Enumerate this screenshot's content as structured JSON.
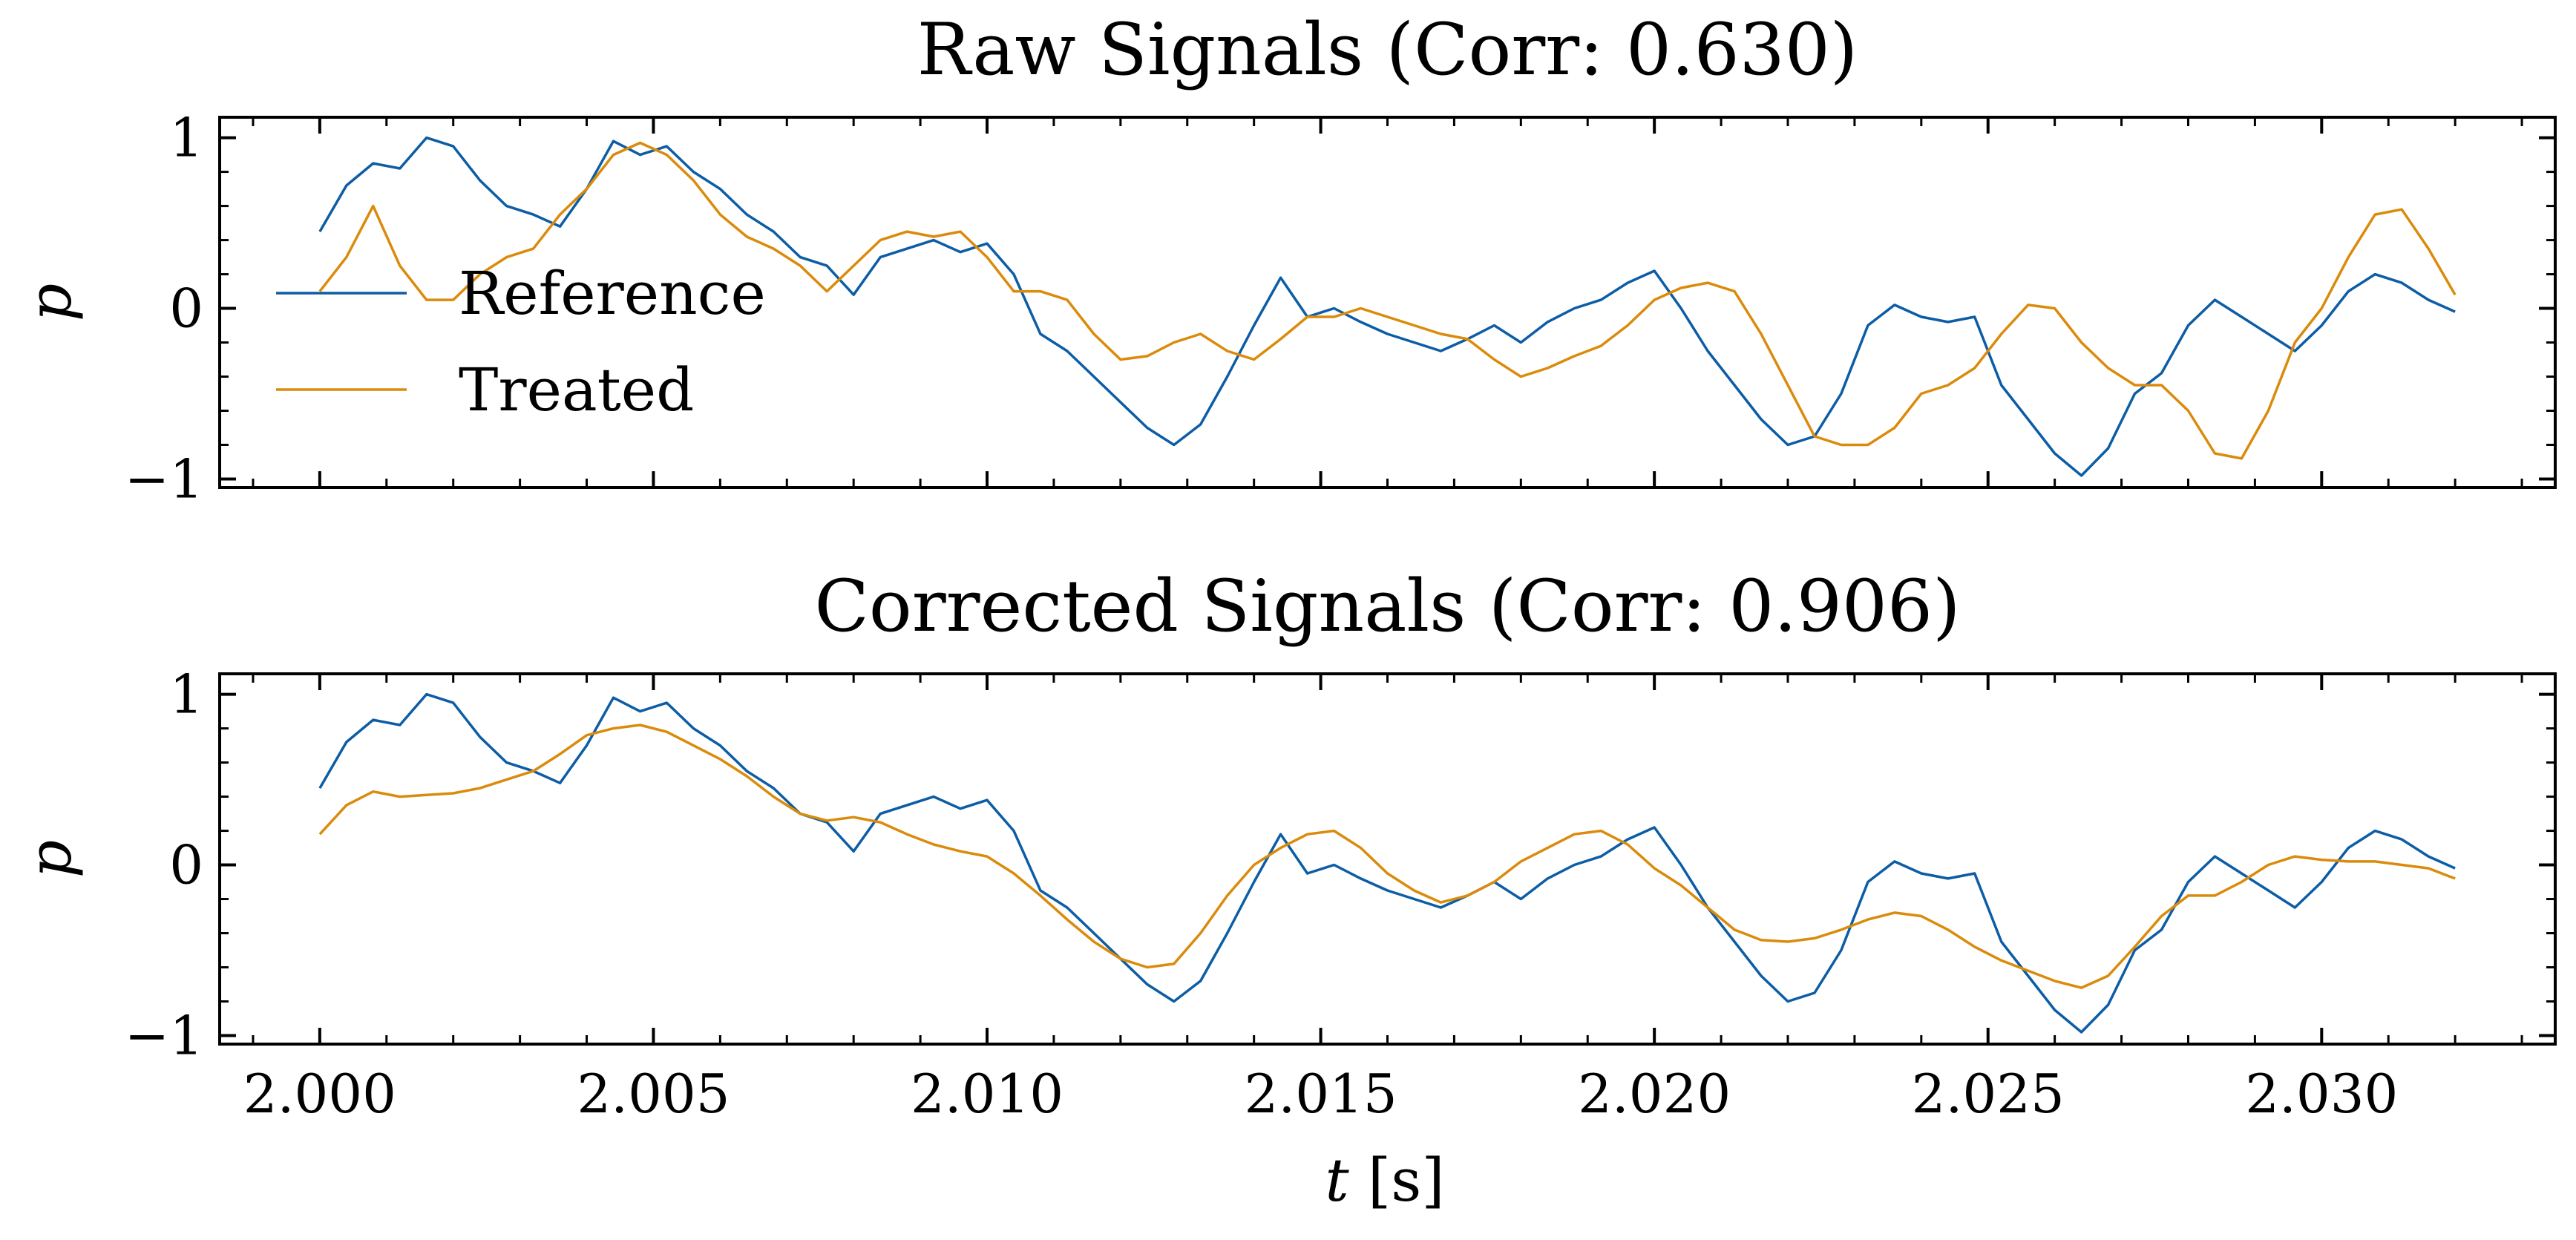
{
  "figure": {
    "xlabel_var": "t",
    "xlabel_unit": " [s]"
  },
  "colors": {
    "reference": "#0C5DA5",
    "treated": "#DB8B0B"
  },
  "chart_data": [
    {
      "type": "line",
      "title": "Raw Signals (Corr: 0.630)",
      "ylabel": "p",
      "xlim": [
        1.9985,
        2.0335
      ],
      "ylim": [
        -1.05,
        1.12
      ],
      "xticks": [
        2.0,
        2.005,
        2.01,
        2.015,
        2.02,
        2.025,
        2.03
      ],
      "yticks": [
        -1,
        0,
        1
      ],
      "legend": "center-left",
      "series": [
        {
          "name": "Reference",
          "color": "#0C5DA5",
          "x": [
            2.0,
            2.0004,
            2.0008,
            2.0012,
            2.0016,
            2.002,
            2.0024,
            2.0028,
            2.0032,
            2.0036,
            2.004,
            2.0044,
            2.0048,
            2.0052,
            2.0056,
            2.006,
            2.0064,
            2.0068,
            2.0072,
            2.0076,
            2.008,
            2.0084,
            2.0088,
            2.0092,
            2.0096,
            2.01,
            2.0104,
            2.0108,
            2.0112,
            2.0116,
            2.012,
            2.0124,
            2.0128,
            2.0132,
            2.0136,
            2.014,
            2.0144,
            2.0148,
            2.0152,
            2.0156,
            2.016,
            2.0164,
            2.0168,
            2.0172,
            2.0176,
            2.018,
            2.0184,
            2.0188,
            2.0192,
            2.0196,
            2.02,
            2.0204,
            2.0208,
            2.0212,
            2.0216,
            2.022,
            2.0224,
            2.0228,
            2.0232,
            2.0236,
            2.024,
            2.0244,
            2.0248,
            2.0252,
            2.0256,
            2.026,
            2.0264,
            2.0268,
            2.0272,
            2.0276,
            2.028,
            2.0284,
            2.0288,
            2.0292,
            2.0296,
            2.03,
            2.0304,
            2.0308,
            2.0312,
            2.0316,
            2.032
          ],
          "y": [
            0.45,
            0.72,
            0.85,
            0.82,
            1.0,
            0.95,
            0.75,
            0.6,
            0.55,
            0.48,
            0.7,
            0.98,
            0.9,
            0.95,
            0.8,
            0.7,
            0.55,
            0.45,
            0.3,
            0.25,
            0.08,
            0.3,
            0.35,
            0.4,
            0.33,
            0.38,
            0.2,
            -0.15,
            -0.25,
            -0.4,
            -0.55,
            -0.7,
            -0.8,
            -0.68,
            -0.4,
            -0.1,
            0.18,
            -0.05,
            0.0,
            -0.08,
            -0.15,
            -0.2,
            -0.25,
            -0.18,
            -0.1,
            -0.2,
            -0.08,
            0.0,
            0.05,
            0.15,
            0.22,
            0.0,
            -0.25,
            -0.45,
            -0.65,
            -0.8,
            -0.75,
            -0.5,
            -0.1,
            0.02,
            -0.05,
            -0.08,
            -0.05,
            -0.45,
            -0.65,
            -0.85,
            -0.98,
            -0.82,
            -0.5,
            -0.38,
            -0.1,
            0.05,
            -0.05,
            -0.15,
            -0.25,
            -0.1,
            0.1,
            0.2,
            0.15,
            0.05,
            -0.02
          ]
        },
        {
          "name": "Treated",
          "color": "#DB8B0B",
          "x": [
            2.0,
            2.0004,
            2.0008,
            2.0012,
            2.0016,
            2.002,
            2.0024,
            2.0028,
            2.0032,
            2.0036,
            2.004,
            2.0044,
            2.0048,
            2.0052,
            2.0056,
            2.006,
            2.0064,
            2.0068,
            2.0072,
            2.0076,
            2.008,
            2.0084,
            2.0088,
            2.0092,
            2.0096,
            2.01,
            2.0104,
            2.0108,
            2.0112,
            2.0116,
            2.012,
            2.0124,
            2.0128,
            2.0132,
            2.0136,
            2.014,
            2.0144,
            2.0148,
            2.0152,
            2.0156,
            2.016,
            2.0164,
            2.0168,
            2.0172,
            2.0176,
            2.018,
            2.0184,
            2.0188,
            2.0192,
            2.0196,
            2.02,
            2.0204,
            2.0208,
            2.0212,
            2.0216,
            2.022,
            2.0224,
            2.0228,
            2.0232,
            2.0236,
            2.024,
            2.0244,
            2.0248,
            2.0252,
            2.0256,
            2.026,
            2.0264,
            2.0268,
            2.0272,
            2.0276,
            2.028,
            2.0284,
            2.0288,
            2.0292,
            2.0296,
            2.03,
            2.0304,
            2.0308,
            2.0312,
            2.0316,
            2.032
          ],
          "y": [
            0.1,
            0.3,
            0.6,
            0.25,
            0.05,
            0.05,
            0.2,
            0.3,
            0.35,
            0.55,
            0.7,
            0.9,
            0.97,
            0.9,
            0.75,
            0.55,
            0.42,
            0.35,
            0.25,
            0.1,
            0.25,
            0.4,
            0.45,
            0.42,
            0.45,
            0.3,
            0.1,
            0.1,
            0.05,
            -0.15,
            -0.3,
            -0.28,
            -0.2,
            -0.15,
            -0.25,
            -0.3,
            -0.18,
            -0.05,
            -0.05,
            0.0,
            -0.05,
            -0.1,
            -0.15,
            -0.18,
            -0.3,
            -0.4,
            -0.35,
            -0.28,
            -0.22,
            -0.1,
            0.05,
            0.12,
            0.15,
            0.1,
            -0.15,
            -0.45,
            -0.75,
            -0.8,
            -0.8,
            -0.7,
            -0.5,
            -0.45,
            -0.35,
            -0.15,
            0.02,
            0.0,
            -0.2,
            -0.35,
            -0.45,
            -0.45,
            -0.6,
            -0.85,
            -0.88,
            -0.6,
            -0.2,
            0.0,
            0.3,
            0.55,
            0.58,
            0.35,
            0.08
          ]
        }
      ]
    },
    {
      "type": "line",
      "title": "Corrected Signals (Corr: 0.906)",
      "ylabel": "p",
      "xlim": [
        1.9985,
        2.0335
      ],
      "ylim": [
        -1.05,
        1.12
      ],
      "xticks": [
        2.0,
        2.005,
        2.01,
        2.015,
        2.02,
        2.025,
        2.03
      ],
      "xticklabels": [
        "2.000",
        "2.005",
        "2.010",
        "2.015",
        "2.020",
        "2.025",
        "2.030"
      ],
      "yticks": [
        -1,
        0,
        1
      ],
      "series": [
        {
          "name": "Reference",
          "color": "#0C5DA5",
          "x": [
            2.0,
            2.0004,
            2.0008,
            2.0012,
            2.0016,
            2.002,
            2.0024,
            2.0028,
            2.0032,
            2.0036,
            2.004,
            2.0044,
            2.0048,
            2.0052,
            2.0056,
            2.006,
            2.0064,
            2.0068,
            2.0072,
            2.0076,
            2.008,
            2.0084,
            2.0088,
            2.0092,
            2.0096,
            2.01,
            2.0104,
            2.0108,
            2.0112,
            2.0116,
            2.012,
            2.0124,
            2.0128,
            2.0132,
            2.0136,
            2.014,
            2.0144,
            2.0148,
            2.0152,
            2.0156,
            2.016,
            2.0164,
            2.0168,
            2.0172,
            2.0176,
            2.018,
            2.0184,
            2.0188,
            2.0192,
            2.0196,
            2.02,
            2.0204,
            2.0208,
            2.0212,
            2.0216,
            2.022,
            2.0224,
            2.0228,
            2.0232,
            2.0236,
            2.024,
            2.0244,
            2.0248,
            2.0252,
            2.0256,
            2.026,
            2.0264,
            2.0268,
            2.0272,
            2.0276,
            2.028,
            2.0284,
            2.0288,
            2.0292,
            2.0296,
            2.03,
            2.0304,
            2.0308,
            2.0312,
            2.0316,
            2.032
          ],
          "y": [
            0.45,
            0.72,
            0.85,
            0.82,
            1.0,
            0.95,
            0.75,
            0.6,
            0.55,
            0.48,
            0.7,
            0.98,
            0.9,
            0.95,
            0.8,
            0.7,
            0.55,
            0.45,
            0.3,
            0.25,
            0.08,
            0.3,
            0.35,
            0.4,
            0.33,
            0.38,
            0.2,
            -0.15,
            -0.25,
            -0.4,
            -0.55,
            -0.7,
            -0.8,
            -0.68,
            -0.4,
            -0.1,
            0.18,
            -0.05,
            0.0,
            -0.08,
            -0.15,
            -0.2,
            -0.25,
            -0.18,
            -0.1,
            -0.2,
            -0.08,
            0.0,
            0.05,
            0.15,
            0.22,
            0.0,
            -0.25,
            -0.45,
            -0.65,
            -0.8,
            -0.75,
            -0.5,
            -0.1,
            0.02,
            -0.05,
            -0.08,
            -0.05,
            -0.45,
            -0.65,
            -0.85,
            -0.98,
            -0.82,
            -0.5,
            -0.38,
            -0.1,
            0.05,
            -0.05,
            -0.15,
            -0.25,
            -0.1,
            0.1,
            0.2,
            0.15,
            0.05,
            -0.02
          ]
        },
        {
          "name": "Treated",
          "color": "#DB8B0B",
          "x": [
            2.0,
            2.0004,
            2.0008,
            2.0012,
            2.0016,
            2.002,
            2.0024,
            2.0028,
            2.0032,
            2.0036,
            2.004,
            2.0044,
            2.0048,
            2.0052,
            2.0056,
            2.006,
            2.0064,
            2.0068,
            2.0072,
            2.0076,
            2.008,
            2.0084,
            2.0088,
            2.0092,
            2.0096,
            2.01,
            2.0104,
            2.0108,
            2.0112,
            2.0116,
            2.012,
            2.0124,
            2.0128,
            2.0132,
            2.0136,
            2.014,
            2.0144,
            2.0148,
            2.0152,
            2.0156,
            2.016,
            2.0164,
            2.0168,
            2.0172,
            2.0176,
            2.018,
            2.0184,
            2.0188,
            2.0192,
            2.0196,
            2.02,
            2.0204,
            2.0208,
            2.0212,
            2.0216,
            2.022,
            2.0224,
            2.0228,
            2.0232,
            2.0236,
            2.024,
            2.0244,
            2.0248,
            2.0252,
            2.0256,
            2.026,
            2.0264,
            2.0268,
            2.0272,
            2.0276,
            2.028,
            2.0284,
            2.0288,
            2.0292,
            2.0296,
            2.03,
            2.0304,
            2.0308,
            2.0312,
            2.0316,
            2.032
          ],
          "y": [
            0.18,
            0.35,
            0.43,
            0.4,
            0.41,
            0.42,
            0.45,
            0.5,
            0.55,
            0.65,
            0.76,
            0.8,
            0.82,
            0.78,
            0.7,
            0.62,
            0.52,
            0.4,
            0.3,
            0.26,
            0.28,
            0.25,
            0.18,
            0.12,
            0.08,
            0.05,
            -0.05,
            -0.18,
            -0.32,
            -0.45,
            -0.55,
            -0.6,
            -0.58,
            -0.4,
            -0.18,
            0.0,
            0.1,
            0.18,
            0.2,
            0.1,
            -0.05,
            -0.15,
            -0.22,
            -0.18,
            -0.1,
            0.02,
            0.1,
            0.18,
            0.2,
            0.12,
            -0.02,
            -0.12,
            -0.25,
            -0.38,
            -0.44,
            -0.45,
            -0.43,
            -0.38,
            -0.32,
            -0.28,
            -0.3,
            -0.38,
            -0.48,
            -0.56,
            -0.62,
            -0.68,
            -0.72,
            -0.65,
            -0.48,
            -0.3,
            -0.18,
            -0.18,
            -0.1,
            0.0,
            0.05,
            0.03,
            0.02,
            0.02,
            0.0,
            -0.02,
            -0.08
          ]
        }
      ]
    }
  ]
}
